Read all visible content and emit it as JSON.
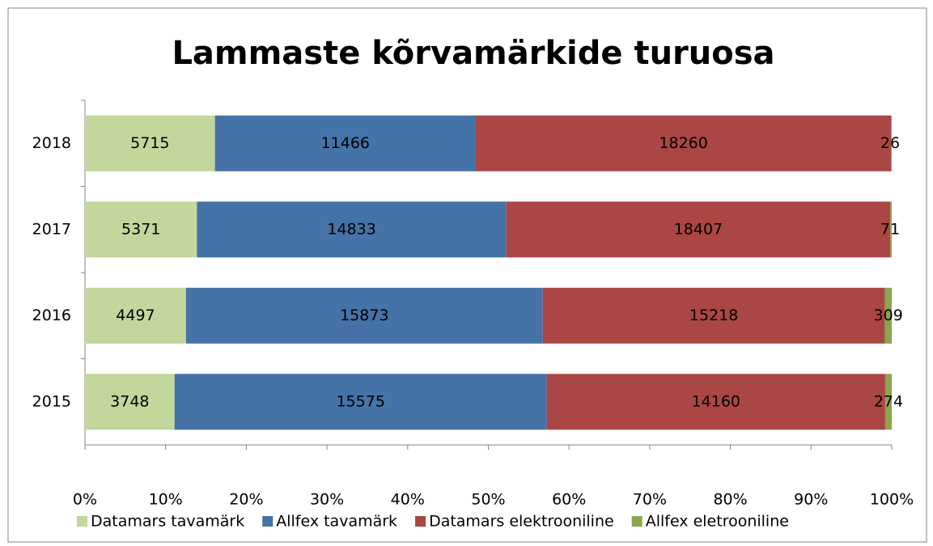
{
  "chart_data": {
    "type": "bar",
    "orientation": "horizontal",
    "stacking": "percent",
    "title": "Lammaste kõrvamärkide turuosa",
    "categories": [
      "2018",
      "2017",
      "2016",
      "2015"
    ],
    "series": [
      {
        "name": "Datamars tavamärk",
        "color": "#c3d69b",
        "values": [
          5715,
          5371,
          4497,
          3748
        ]
      },
      {
        "name": "Allfex tavamärk",
        "color": "#4572a7",
        "values": [
          11466,
          14833,
          15873,
          15575
        ]
      },
      {
        "name": "Datamars elektrooniline",
        "color": "#aa4643",
        "values": [
          18260,
          18407,
          15218,
          14160
        ]
      },
      {
        "name": "Allfex eletrooniline",
        "color": "#89a54e",
        "values": [
          26,
          71,
          309,
          274
        ]
      }
    ],
    "xlim": [
      0,
      100
    ],
    "xticks": [
      {
        "value": 0,
        "label": "0%"
      },
      {
        "value": 10,
        "label": "10%"
      },
      {
        "value": 20,
        "label": "20%"
      },
      {
        "value": 30,
        "label": "30%"
      },
      {
        "value": 40,
        "label": "40%"
      },
      {
        "value": 50,
        "label": "50%"
      },
      {
        "value": 60,
        "label": "60%"
      },
      {
        "value": 70,
        "label": "70%"
      },
      {
        "value": 80,
        "label": "80%"
      },
      {
        "value": 90,
        "label": "90%"
      },
      {
        "value": 100,
        "label": "100%"
      }
    ],
    "grid": false,
    "legend": "bottom"
  }
}
